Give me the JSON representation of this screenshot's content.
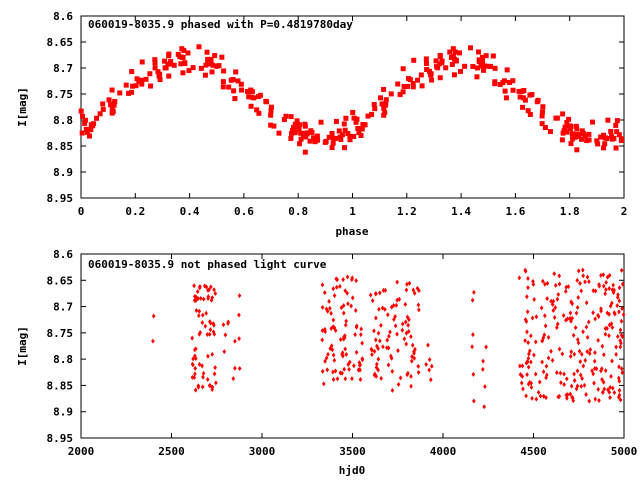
{
  "chart_data": [
    {
      "type": "scatter",
      "title": "060019-8035.9 phased with P=0.4819780day",
      "xlabel": "phase",
      "ylabel": "I[mag]",
      "xlim": [
        0,
        2
      ],
      "ylim": [
        8.6,
        8.95
      ],
      "y_inverted": true,
      "grid": false,
      "marker_color": "#ff0000",
      "x_ticks": [
        "0",
        "0.2",
        "0.4",
        "0.6",
        "0.8",
        "1",
        "1.2",
        "1.4",
        "1.6",
        "1.8",
        "2"
      ],
      "y_ticks": [
        "8.6",
        "8.65",
        "8.7",
        "8.75",
        "8.8",
        "8.85",
        "8.9",
        "8.95"
      ],
      "model": {
        "mean": 8.76,
        "amp": 0.075,
        "peak_phase": 0.38,
        "noise": 0.02
      }
    },
    {
      "type": "scatter",
      "title": "060019-8035.9 not phased light curve",
      "xlabel": "hjd0",
      "ylabel": "I[mag]",
      "xlim": [
        2000,
        5000
      ],
      "ylim": [
        8.6,
        8.95
      ],
      "y_inverted": true,
      "grid": false,
      "marker_color": "#ff0000",
      "x_ticks": [
        "2000",
        "2500",
        "3000",
        "3500",
        "4000",
        "4500",
        "5000"
      ],
      "y_ticks": [
        "8.6",
        "8.65",
        "8.7",
        "8.75",
        "8.8",
        "8.85",
        "8.9",
        "8.95"
      ],
      "clusters": [
        {
          "x_range": [
            2395,
            2410
          ],
          "n": 2,
          "y_range": [
            8.67,
            8.8
          ]
        },
        {
          "x_range": [
            2610,
            2750
          ],
          "n": 70,
          "y_range": [
            8.66,
            8.86
          ]
        },
        {
          "x_range": [
            2770,
            2880
          ],
          "n": 12,
          "y_range": [
            8.66,
            8.85
          ]
        },
        {
          "x_range": [
            3330,
            3560
          ],
          "n": 90,
          "y_range": [
            8.64,
            8.85
          ]
        },
        {
          "x_range": [
            3600,
            3870
          ],
          "n": 90,
          "y_range": [
            8.65,
            8.86
          ]
        },
        {
          "x_range": [
            3900,
            3960
          ],
          "n": 6,
          "y_range": [
            8.75,
            8.84
          ]
        },
        {
          "x_range": [
            4160,
            4180
          ],
          "n": 6,
          "y_range": [
            8.67,
            8.88
          ]
        },
        {
          "x_range": [
            4220,
            4250
          ],
          "n": 5,
          "y_range": [
            8.75,
            8.9
          ]
        },
        {
          "x_range": [
            4420,
            5000
          ],
          "n": 250,
          "y_range": [
            8.63,
            8.88
          ]
        }
      ]
    }
  ]
}
